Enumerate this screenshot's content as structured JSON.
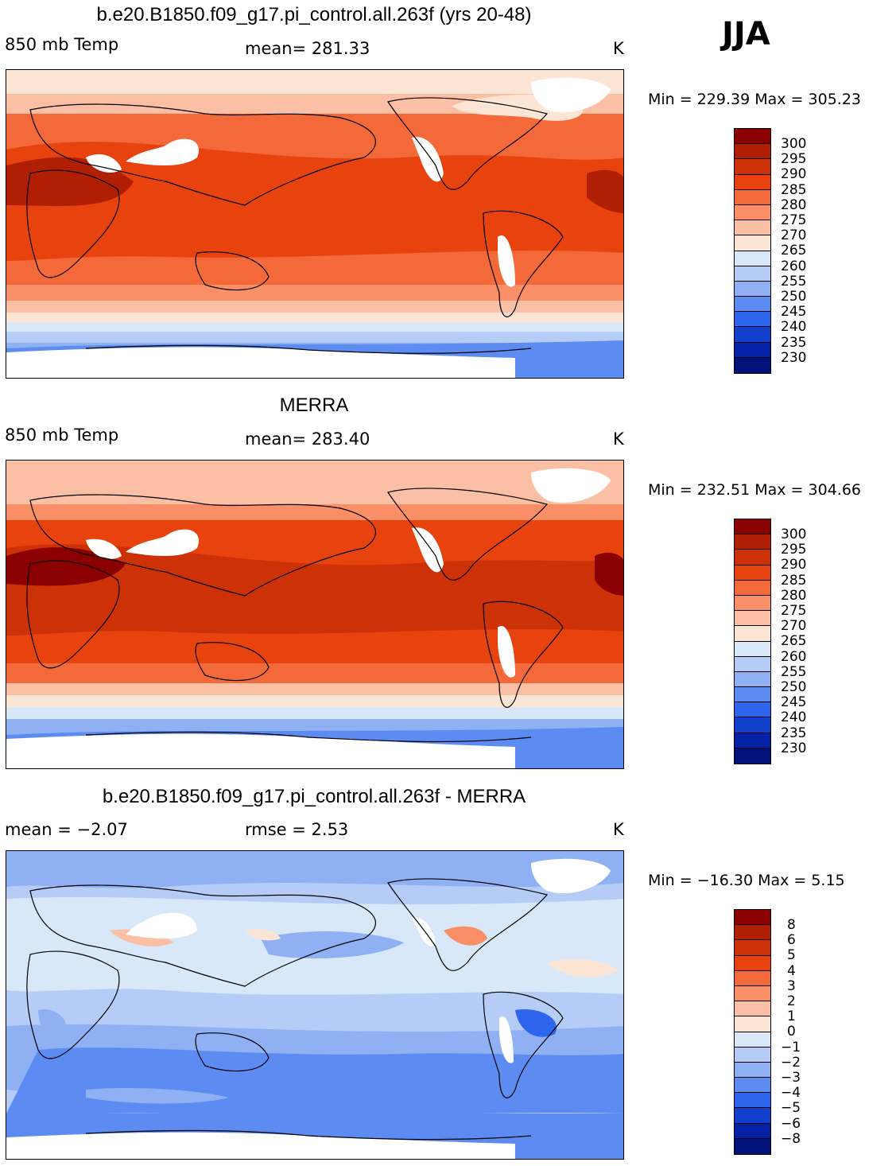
{
  "season": "JJA",
  "units": "K",
  "panels": [
    {
      "title": "b.e20.B1850.f09_g17.pi_control.all.263f (yrs 20-48)",
      "left_label": "850 mb Temp",
      "center_label": "mean= 281.33",
      "right_label": "K",
      "min_max": "Min = 229.39 Max = 305.23",
      "colorbar_labels": [
        "300",
        "295",
        "290",
        "285",
        "280",
        "275",
        "270",
        "265",
        "260",
        "255",
        "250",
        "245",
        "240",
        "235",
        "230"
      ]
    },
    {
      "title": "MERRA",
      "left_label": "850 mb Temp",
      "center_label": "mean= 283.40",
      "right_label": "K",
      "min_max": "Min = 232.51 Max = 304.66",
      "colorbar_labels": [
        "300",
        "295",
        "290",
        "285",
        "280",
        "275",
        "270",
        "265",
        "260",
        "255",
        "250",
        "245",
        "240",
        "235",
        "230"
      ]
    },
    {
      "title": "b.e20.B1850.f09_g17.pi_control.all.263f - MERRA",
      "left_label": "mean =   −2.07",
      "center_label": "rmse =    2.53",
      "right_label": "K",
      "min_max": "Min = −16.30 Max =    5.15",
      "colorbar_labels": [
        "8",
        "6",
        "5",
        "4",
        "3",
        "2",
        "1",
        "0",
        "−1",
        "−2",
        "−3",
        "−4",
        "−5",
        "−6",
        "−8"
      ]
    }
  ],
  "colors": {
    "temp_scale": [
      "#8b0000",
      "#b01e04",
      "#cc3107",
      "#e8420f",
      "#f4693a",
      "#f98e67",
      "#fbbfa5",
      "#fde5d6",
      "#d8e8f8",
      "#b4ccf6",
      "#8fb0f3",
      "#5c8cf1",
      "#2d66ec",
      "#1140cc",
      "#0420a4",
      "#00127a"
    ],
    "diff_scale": [
      "#8b0000",
      "#b01e04",
      "#cc3107",
      "#e8420f",
      "#f4693a",
      "#f98e67",
      "#fbbfa5",
      "#fde5d6",
      "#d8e8f8",
      "#b4ccf6",
      "#8fb0f3",
      "#5c8cf1",
      "#2d66ec",
      "#1140cc",
      "#0420a4",
      "#00127a"
    ]
  }
}
